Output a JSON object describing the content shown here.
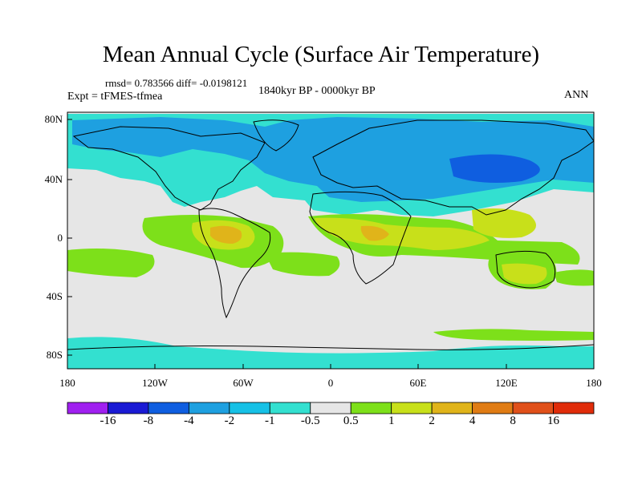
{
  "title": "Mean Annual Cycle (Surface Air Temperature)",
  "stats": "rmsd= 0.783566  diff= -0.0198121",
  "subtitle_left": "Expt = tFMES-tfmea",
  "subtitle_center": "1840kyr BP - 0000kyr BP",
  "subtitle_right": "ANN",
  "lat_labels": [
    "80N",
    "40N",
    "0",
    "40S",
    "80S"
  ],
  "lon_labels": [
    "180",
    "120W",
    "60W",
    "0",
    "60E",
    "120E",
    "180"
  ],
  "colorbar": {
    "labels": [
      "-16",
      "-8",
      "-4",
      "-2",
      "-1",
      "-0.5",
      "0.5",
      "1",
      "2",
      "4",
      "8",
      "16"
    ],
    "colors": [
      "#a020f0",
      "#1a1ad4",
      "#0f5ee0",
      "#1ea0e0",
      "#16c1e6",
      "#33e0d0",
      "#e6e6e6",
      "#7de01a",
      "#c8e01a",
      "#e0b41a",
      "#e07c14",
      "#e0501a",
      "#e02c0a"
    ]
  }
}
